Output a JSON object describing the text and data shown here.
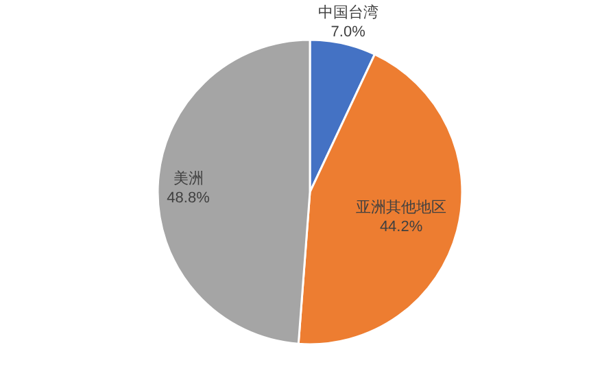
{
  "chart_data": {
    "type": "pie",
    "categories": [
      "中国台湾",
      "亚洲其他地区",
      "美洲"
    ],
    "values": [
      7.0,
      44.2,
      48.8
    ],
    "value_labels": [
      "7.0%",
      "44.2%",
      "48.8%"
    ],
    "colors": [
      "#4472c4",
      "#ed7d31",
      "#a5a5a5"
    ]
  }
}
